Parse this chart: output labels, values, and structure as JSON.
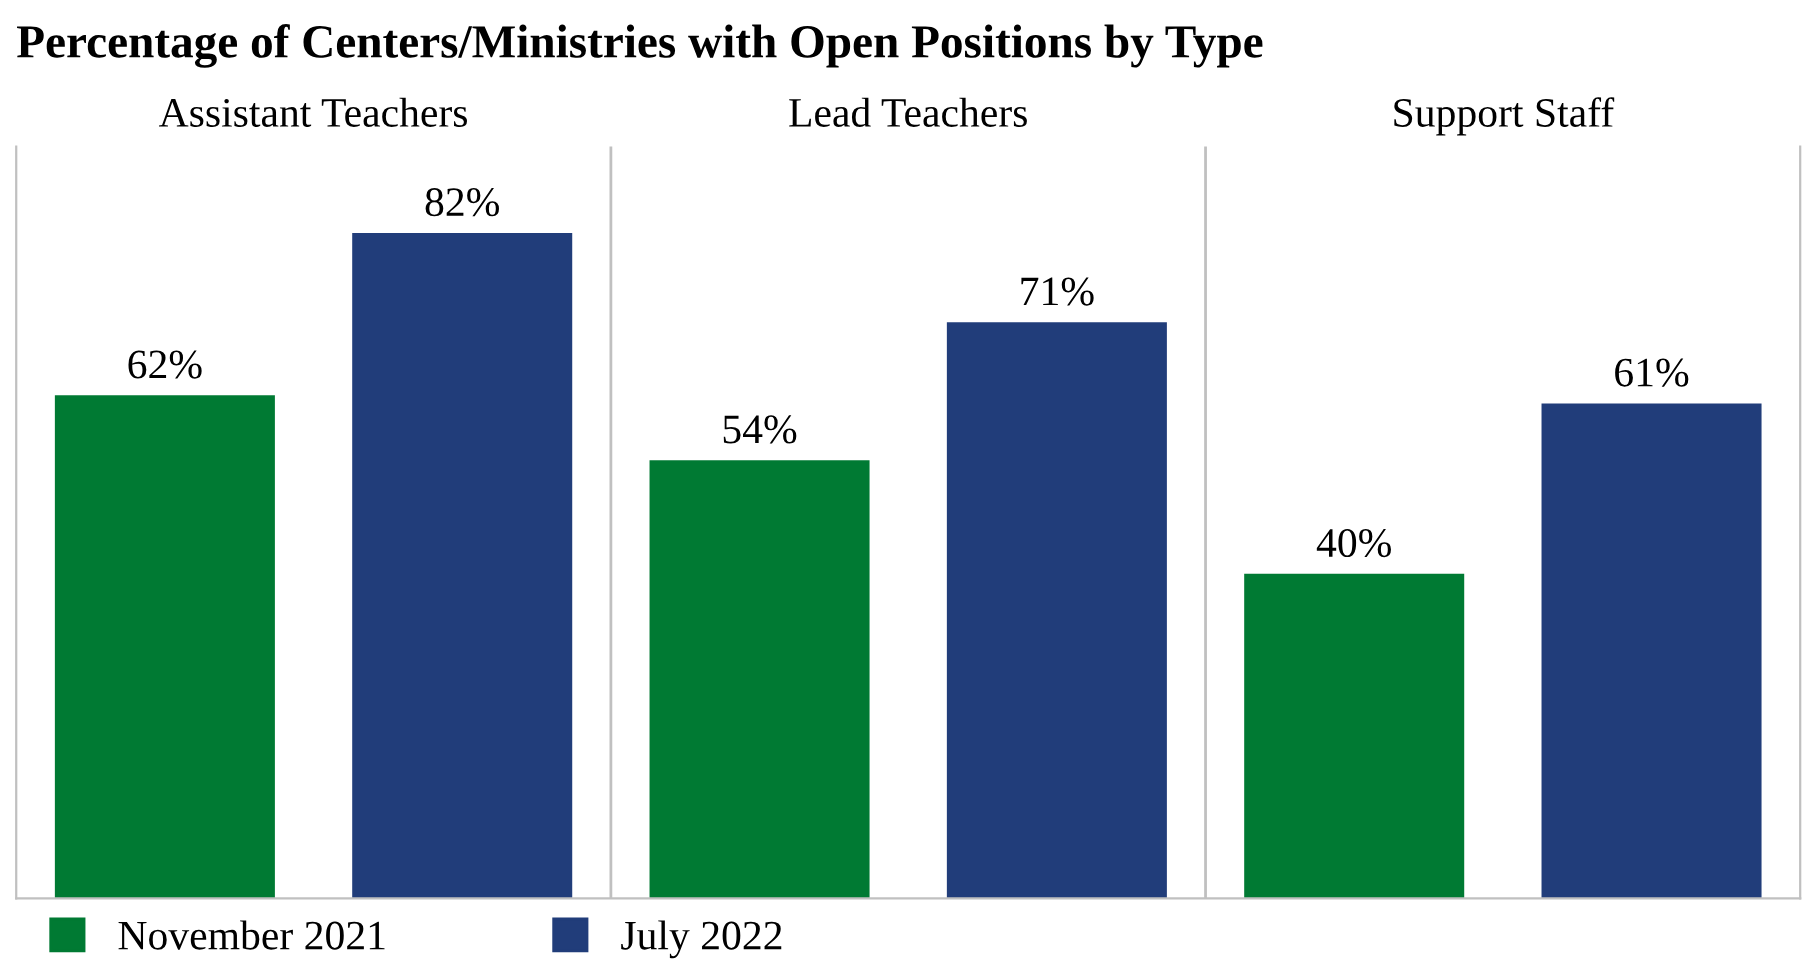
{
  "chart_data": {
    "type": "bar",
    "title": "Percentage of Centers/Ministries with Open Positions by Type",
    "categories": [
      "Assistant Teachers",
      "Lead Teachers",
      "Support Staff"
    ],
    "series": [
      {
        "name": "November 2021",
        "color": "#007a33",
        "values": [
          62,
          54,
          40
        ],
        "value_labels": [
          "62%",
          "54%",
          "40%"
        ]
      },
      {
        "name": "July 2022",
        "color": "#213d7a",
        "values": [
          82,
          71,
          61
        ],
        "value_labels": [
          "82%",
          "71%",
          "61%"
        ]
      }
    ],
    "relative": false,
    "grid": "x",
    "legend": "bottom left"
  }
}
